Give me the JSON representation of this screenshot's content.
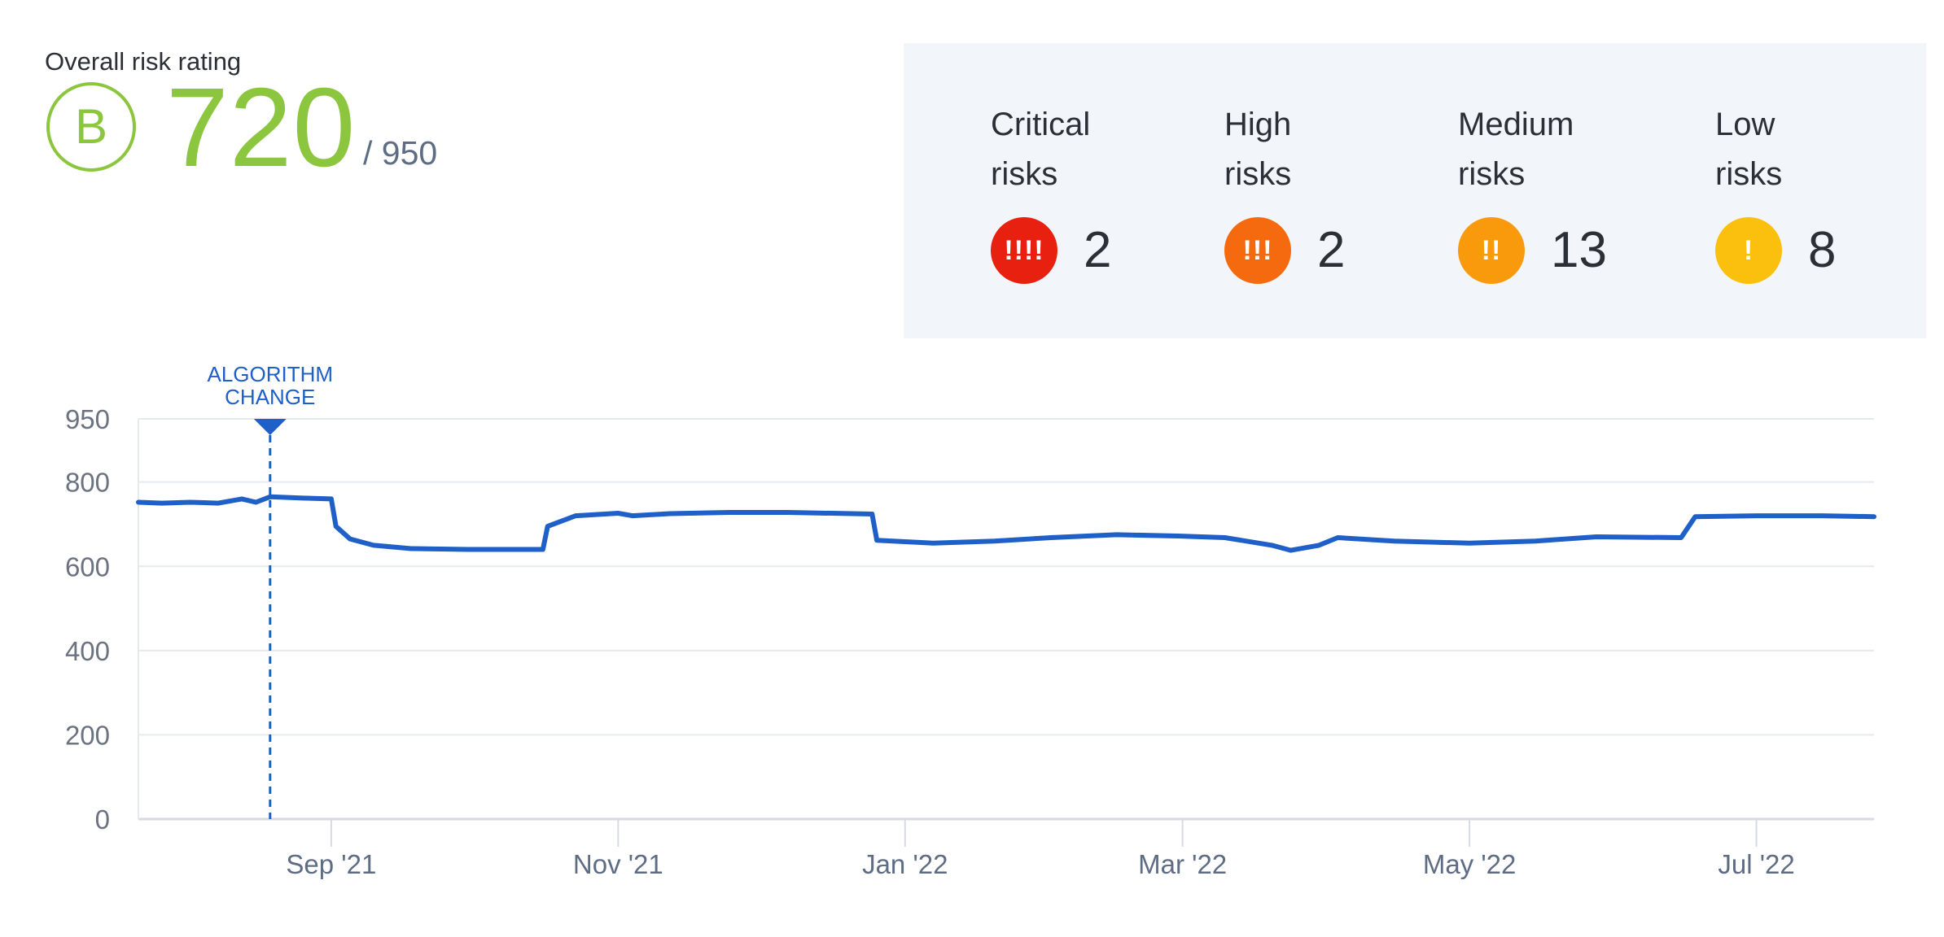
{
  "rating": {
    "label": "Overall risk rating",
    "grade": "B",
    "score": "720",
    "max": "/ 950",
    "color": "#8cc63f"
  },
  "risks": [
    {
      "title_line1": "Critical",
      "title_line2": "risks",
      "icon": "!!!!",
      "count": "2",
      "color": "#e8200f",
      "icon_name": "critical-exclamation-icon"
    },
    {
      "title_line1": "High",
      "title_line2": "risks",
      "icon": "!!!",
      "count": "2",
      "color": "#f56a0f",
      "icon_name": "high-exclamation-icon"
    },
    {
      "title_line1": "Medium",
      "title_line2": "risks",
      "icon": "!!",
      "count": "13",
      "color": "#f99a0c",
      "icon_name": "medium-exclamation-icon"
    },
    {
      "title_line1": "Low",
      "title_line2": "risks",
      "icon": "!",
      "count": "8",
      "color": "#fbbf0e",
      "icon_name": "low-exclamation-icon"
    }
  ],
  "chart_data": {
    "type": "line",
    "x_ticks": [
      "Sep '21",
      "Nov '21",
      "Jan '22",
      "Mar '22",
      "May '22",
      "Jul '22"
    ],
    "y_ticks": [
      0,
      200,
      400,
      600,
      800,
      950
    ],
    "ylim": [
      0,
      950
    ],
    "xlim": [
      "2021-07-22",
      "2022-07-26"
    ],
    "grid": true,
    "line_color": "#1f5fc8",
    "annotation": {
      "date": "2021-08-19",
      "line1": "ALGORITHM",
      "line2": "CHANGE"
    },
    "series": [
      {
        "points": [
          [
            "2021-07-22",
            752
          ],
          [
            "2021-07-27",
            750
          ],
          [
            "2021-08-02",
            752
          ],
          [
            "2021-08-08",
            750
          ],
          [
            "2021-08-13",
            760
          ],
          [
            "2021-08-16",
            752
          ],
          [
            "2021-08-19",
            765
          ],
          [
            "2021-08-26",
            762
          ],
          [
            "2021-09-01",
            760
          ],
          [
            "2021-09-02",
            695
          ],
          [
            "2021-09-05",
            665
          ],
          [
            "2021-09-10",
            650
          ],
          [
            "2021-09-18",
            642
          ],
          [
            "2021-09-30",
            640
          ],
          [
            "2021-10-16",
            640
          ],
          [
            "2021-10-17",
            695
          ],
          [
            "2021-10-23",
            720
          ],
          [
            "2021-11-01",
            726
          ],
          [
            "2021-11-04",
            720
          ],
          [
            "2021-11-12",
            725
          ],
          [
            "2021-11-25",
            728
          ],
          [
            "2021-12-07",
            728
          ],
          [
            "2021-12-25",
            724
          ],
          [
            "2021-12-26",
            662
          ],
          [
            "2022-01-07",
            655
          ],
          [
            "2022-01-20",
            660
          ],
          [
            "2022-02-01",
            668
          ],
          [
            "2022-02-15",
            675
          ],
          [
            "2022-02-28",
            672
          ],
          [
            "2022-03-10",
            668
          ],
          [
            "2022-03-20",
            650
          ],
          [
            "2022-03-24",
            638
          ],
          [
            "2022-03-30",
            650
          ],
          [
            "2022-04-03",
            668
          ],
          [
            "2022-04-15",
            660
          ],
          [
            "2022-05-01",
            655
          ],
          [
            "2022-05-15",
            660
          ],
          [
            "2022-05-28",
            670
          ],
          [
            "2022-06-15",
            668
          ],
          [
            "2022-06-18",
            718
          ],
          [
            "2022-07-01",
            720
          ],
          [
            "2022-07-15",
            720
          ],
          [
            "2022-07-26",
            718
          ]
        ]
      }
    ]
  }
}
